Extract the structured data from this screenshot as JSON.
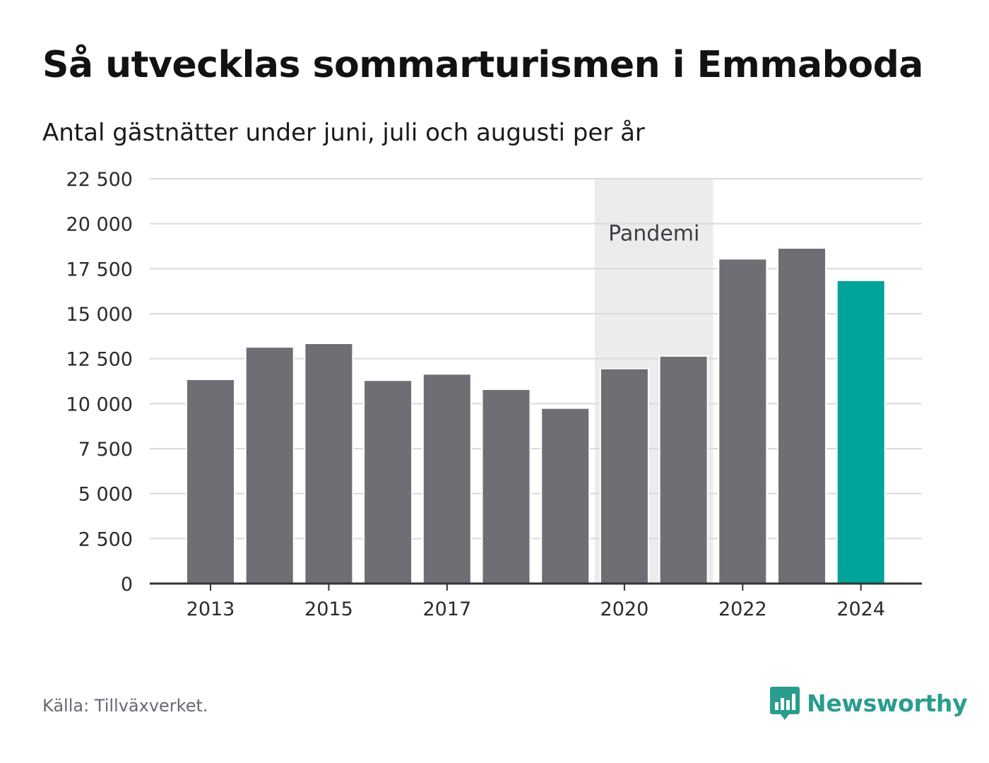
{
  "header": {
    "title": "Så utvecklas sommarturismen i Emmaboda",
    "subtitle": "Antal gästnätter under juni, juli och augusti per år"
  },
  "footer": {
    "source": "Källa: Tillväxverket.",
    "brand": "Newsworthy",
    "brand_icon": "bar-chart-bubble-icon"
  },
  "colors": {
    "bar": "#6f6e74",
    "highlight": "#00a49a",
    "shade": "#ececec",
    "grid": "#dadada",
    "axis": "#333333",
    "brand": "#2a9d8f"
  },
  "chart_data": {
    "type": "bar",
    "categories": [
      "2013",
      "2014",
      "2015",
      "2016",
      "2017",
      "2018",
      "2019",
      "2020",
      "2021",
      "2022",
      "2023",
      "2024"
    ],
    "values": [
      11350,
      13150,
      13350,
      11300,
      11650,
      10800,
      9750,
      11950,
      12650,
      18050,
      18650,
      16850
    ],
    "highlight_category": "2024",
    "ylim": [
      0,
      22500
    ],
    "yticks": [
      0,
      2500,
      5000,
      7500,
      10000,
      12500,
      15000,
      17500,
      20000,
      22500
    ],
    "ytick_labels": [
      "0",
      "2 500",
      "5 000",
      "7 500",
      "10 000",
      "12 500",
      "15 000",
      "17 500",
      "20 000",
      "22 500"
    ],
    "xtick_labels": [
      "2013",
      "2015",
      "2017",
      "2020",
      "2022",
      "2024"
    ],
    "grid": true,
    "annotation": {
      "label": "Pandemi",
      "from": "2020",
      "to": "2021"
    }
  }
}
